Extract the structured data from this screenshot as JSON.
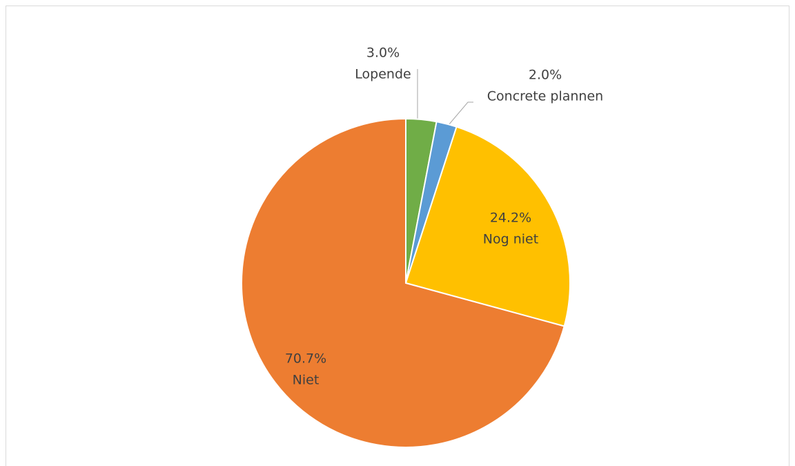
{
  "chart_data": {
    "type": "pie",
    "categories": [
      "Lopende",
      "Concrete plannen",
      "Nog niet",
      "Niet"
    ],
    "values": [
      3.0,
      2.0,
      24.2,
      70.7
    ],
    "value_labels": [
      "3.0%",
      "2.0%",
      "24.2%",
      "70.7%"
    ],
    "colors": [
      "#70ad47",
      "#5b9bd5",
      "#ffc000",
      "#ed7d31"
    ]
  }
}
